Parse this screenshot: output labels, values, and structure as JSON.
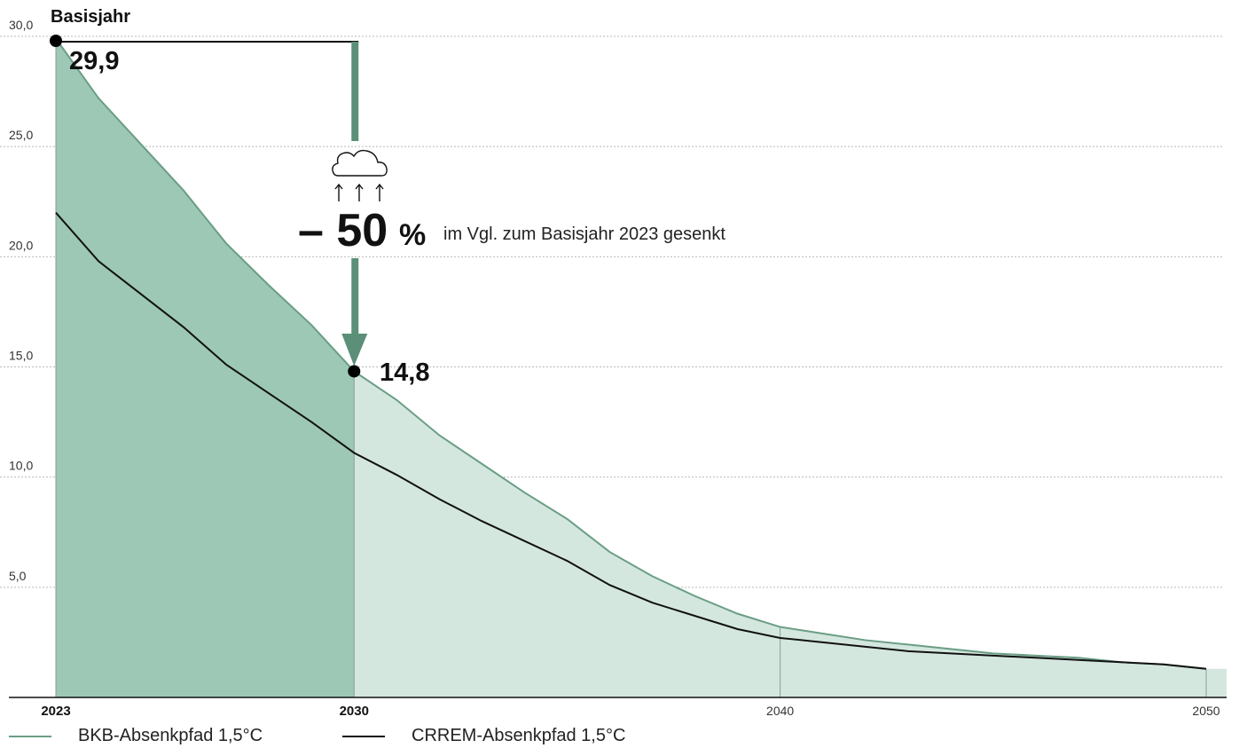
{
  "chart_data": {
    "type": "area",
    "x": [
      2023,
      2024,
      2025,
      2026,
      2027,
      2028,
      2029,
      2030,
      2031,
      2032,
      2033,
      2034,
      2035,
      2036,
      2037,
      2038,
      2039,
      2040,
      2041,
      2042,
      2043,
      2044,
      2045,
      2046,
      2047,
      2048,
      2049,
      2050
    ],
    "series": [
      {
        "name": "BKB-Absenkpfad 1,5°C",
        "color": "#6a9e84",
        "fill_highlight": "#9cc8b5",
        "fill_rest": "#d4e7df",
        "values": [
          29.9,
          27.2,
          25.1,
          23.0,
          20.6,
          18.7,
          16.9,
          14.8,
          13.5,
          11.9,
          10.6,
          9.3,
          8.1,
          6.6,
          5.5,
          4.6,
          3.8,
          3.2,
          2.9,
          2.6,
          2.4,
          2.2,
          2.0,
          1.9,
          1.8,
          1.6,
          1.5,
          1.3
        ]
      },
      {
        "name": "CRREM-Absenkpfad 1,5°C",
        "color": "#111111",
        "values": [
          22.0,
          19.8,
          18.3,
          16.8,
          15.1,
          13.8,
          12.5,
          11.1,
          10.1,
          9.0,
          8.0,
          7.1,
          6.2,
          5.1,
          4.3,
          3.7,
          3.1,
          2.7,
          2.5,
          2.3,
          2.1,
          2.0,
          1.9,
          1.8,
          1.7,
          1.6,
          1.5,
          1.3
        ]
      }
    ],
    "ylim": [
      0,
      30
    ],
    "y_ticks": [
      "5,0",
      "10,0",
      "15,0",
      "20,0",
      "25,0",
      "30,0"
    ],
    "y_tick_values": [
      5,
      10,
      15,
      20,
      25,
      30
    ],
    "x_ticks": [
      {
        "value": 2023,
        "label": "2023",
        "bold": true
      },
      {
        "value": 2030,
        "label": "2030",
        "bold": true
      },
      {
        "value": 2040,
        "label": "2040",
        "bold": false
      },
      {
        "value": 2050,
        "label": "2050",
        "bold": false
      }
    ],
    "highlight_range": [
      2023,
      2030
    ],
    "grid": true,
    "legend_position": "bottom-left",
    "annotations": {
      "base_title": "Basisjahr",
      "base_value_label": "29,9",
      "target_value_label": "14,8",
      "reduction_label": "– 50",
      "reduction_percent": "%",
      "reduction_text": "im Vgl. zum Basisjahr 2023 gesenkt",
      "arrow_color": "#5b8f77"
    }
  }
}
